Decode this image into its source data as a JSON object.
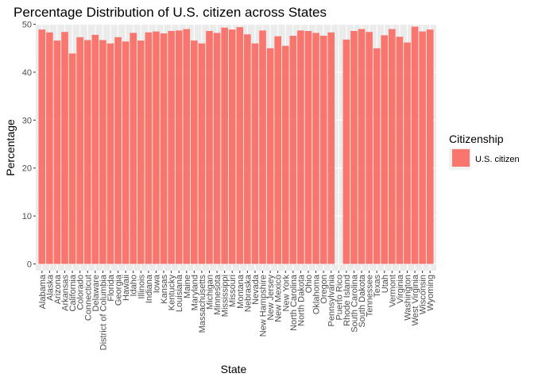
{
  "chart_data": {
    "type": "bar",
    "title": "Percentage Distribution of U.S. citizen across States",
    "xlabel": "State",
    "ylabel": "Percentage",
    "ylim": [
      0,
      51.5
    ],
    "yticks": [
      0,
      10,
      20,
      30,
      40,
      50
    ],
    "grid": true,
    "legend_position": "right",
    "categories": [
      "Alabama",
      "Alaska",
      "Arizona",
      "Arkansas",
      "California",
      "Colorado",
      "Connecticut",
      "Delaware",
      "District of Columbia",
      "Florida",
      "Georgia",
      "Hawaii",
      "Idaho",
      "Illinois",
      "Indiana",
      "Iowa",
      "Kansas",
      "Kentucky",
      "Louisiana",
      "Maine",
      "Maryland",
      "Massachusetts",
      "Michigan",
      "Minnesota",
      "Mississippi",
      "Missouri",
      "Montana",
      "Nebraska",
      "Nevada",
      "New Hampshire",
      "New Jersey",
      "New Mexico",
      "New York",
      "North Carolina",
      "North Dakota",
      "Ohio",
      "Oklahoma",
      "Oregon",
      "Pennsylvania",
      "Puerto Rico",
      "Rhode Island",
      "South Carolina",
      "South Dakota",
      "Tennessee",
      "Texas",
      "Utah",
      "Vermont",
      "Virginia",
      "Washington",
      "West Virginia",
      "Wisconsin",
      "Wyoming"
    ],
    "series": [
      {
        "name": "U.S. citizen",
        "color": "#f8766d",
        "values": [
          48.9,
          48.3,
          46.6,
          48.4,
          43.9,
          47.3,
          46.7,
          47.8,
          46.7,
          46.0,
          47.3,
          46.4,
          48.2,
          46.6,
          48.3,
          48.5,
          48.1,
          48.6,
          48.7,
          49.0,
          46.6,
          46.0,
          48.6,
          48.2,
          49.3,
          48.9,
          49.4,
          47.9,
          46.0,
          48.7,
          45.0,
          47.5,
          45.5,
          47.6,
          48.7,
          48.6,
          48.2,
          47.6,
          48.3,
          null,
          46.8,
          48.6,
          49.0,
          48.4,
          45.0,
          47.7,
          49.0,
          47.4,
          46.2,
          49.5,
          48.5,
          48.9
        ]
      }
    ],
    "legend": {
      "title": "Citizenship",
      "items": [
        "U.S. citizen"
      ]
    }
  }
}
